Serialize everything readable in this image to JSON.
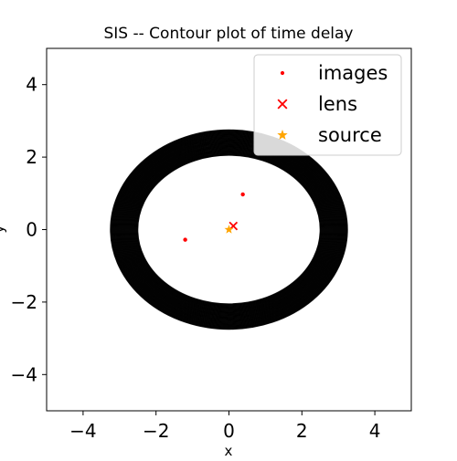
{
  "chart_data": {
    "type": "contour",
    "title": "SIS -- Contour plot of time delay",
    "xlabel": "x",
    "ylabel": "y",
    "xlim": [
      -5,
      5
    ],
    "ylim": [
      -5,
      5
    ],
    "xticks": [
      -4,
      -2,
      0,
      2,
      4
    ],
    "yticks": [
      -4,
      -2,
      0,
      2,
      4
    ],
    "xtick_labels": [
      "−4",
      "−2",
      "0",
      "2",
      "4"
    ],
    "ytick_labels": [
      "−4",
      "−2",
      "0",
      "2",
      "4"
    ],
    "grid": false,
    "legend_position": "top-right",
    "contour_region": {
      "center": [
        0,
        0
      ],
      "inner_radius_x": 2.5,
      "inner_radius_y": 2.05,
      "outer_radius_x": 3.25,
      "outer_radius_y": 2.75,
      "color": "#000000"
    },
    "series": [
      {
        "name": "images",
        "marker": "dot",
        "color": "#ff0000",
        "points": [
          [
            0.38,
            0.97
          ],
          [
            -1.2,
            -0.28
          ]
        ]
      },
      {
        "name": "lens",
        "marker": "x",
        "color": "#ff0000",
        "points": [
          [
            0.12,
            0.1
          ]
        ]
      },
      {
        "name": "source",
        "marker": "star",
        "color": "#ffa500",
        "points": [
          [
            0.0,
            0.0
          ]
        ]
      }
    ]
  }
}
